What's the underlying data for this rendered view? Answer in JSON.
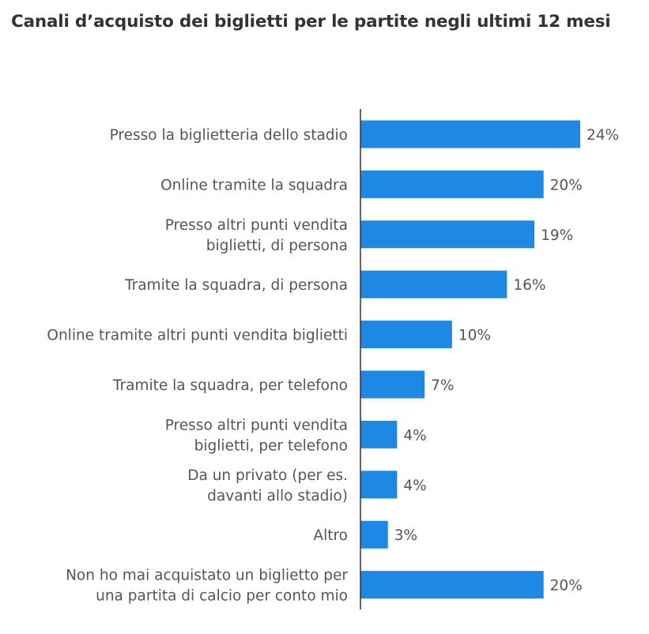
{
  "chart_data": {
    "type": "bar",
    "orientation": "horizontal",
    "title": "Canali d’acquisto dei biglietti per le partite negli ultimi 12 mesi",
    "categories": [
      [
        "Presso la biglietteria dello stadio"
      ],
      [
        "Online tramite la squadra"
      ],
      [
        "Presso altri punti vendita",
        "biglietti, di persona"
      ],
      [
        "Tramite la squadra, di persona"
      ],
      [
        "Online tramite altri punti vendita biglietti"
      ],
      [
        "Tramite la squadra, per telefono"
      ],
      [
        "Presso altri punti vendita",
        "biglietti, per telefono"
      ],
      [
        "Da un privato (per es.",
        "davanti allo stadio)"
      ],
      [
        "Altro"
      ],
      [
        "Non ho mai acquistato un biglietto per",
        "una partita di calcio per conto mio"
      ]
    ],
    "values": [
      24,
      20,
      19,
      16,
      10,
      7,
      4,
      4,
      3,
      20
    ],
    "value_labels": [
      "24%",
      "20%",
      "19%",
      "16%",
      "10%",
      "7%",
      "4%",
      "4%",
      "3%",
      "20%"
    ],
    "unit": "%",
    "xlim": [
      0,
      24
    ],
    "grid": false,
    "legend": "none",
    "bar_color": "#1e88e5"
  }
}
